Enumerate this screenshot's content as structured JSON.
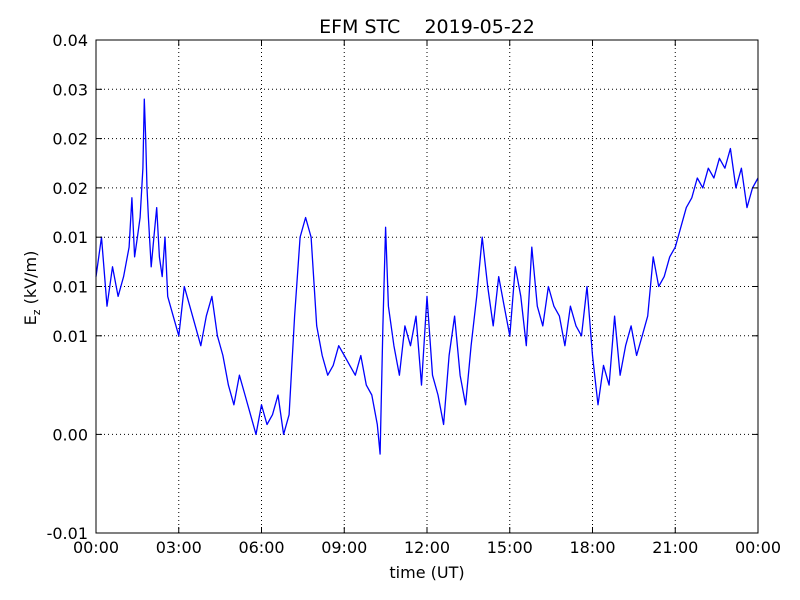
{
  "chart_data": {
    "type": "line",
    "title": "EFM STC    2019-05-22",
    "xlabel": "time (UT)",
    "ylabel": "E",
    "ylabel_sub": "z",
    "ylabel_unit": " (kV/m)",
    "xlim": [
      0,
      24
    ],
    "ylim": [
      -0.01,
      0.04
    ],
    "x_ticks": [
      0,
      3,
      6,
      9,
      12,
      15,
      18,
      21,
      24
    ],
    "x_tick_labels": [
      "00:00",
      "03:00",
      "06:00",
      "09:00",
      "12:00",
      "15:00",
      "18:00",
      "21:00",
      "00:00"
    ],
    "y_ticks": [
      -0.01,
      0.0,
      0.01,
      0.015,
      0.02,
      0.025,
      0.03,
      0.035,
      0.04
    ],
    "y_tick_labels": [
      "-0.01",
      "0.00",
      "0.01",
      "0.01",
      "0.01",
      "0.02",
      "0.02",
      "0.03",
      "0.04"
    ],
    "grid": true,
    "grid_style": "dotted",
    "series": [
      {
        "color": "#0000ff",
        "x": [
          0.0,
          0.2,
          0.4,
          0.6,
          0.8,
          1.0,
          1.2,
          1.3,
          1.4,
          1.5,
          1.6,
          1.7,
          1.75,
          1.8,
          1.85,
          1.9,
          2.0,
          2.1,
          2.2,
          2.3,
          2.4,
          2.5,
          2.6,
          2.8,
          3.0,
          3.2,
          3.4,
          3.6,
          3.8,
          4.0,
          4.2,
          4.4,
          4.6,
          4.8,
          5.0,
          5.2,
          5.4,
          5.6,
          5.8,
          6.0,
          6.2,
          6.4,
          6.6,
          6.8,
          7.0,
          7.2,
          7.4,
          7.6,
          7.8,
          8.0,
          8.2,
          8.4,
          8.6,
          8.8,
          9.0,
          9.2,
          9.4,
          9.6,
          9.8,
          10.0,
          10.2,
          10.3,
          10.4,
          10.5,
          10.6,
          10.8,
          11.0,
          11.2,
          11.4,
          11.6,
          11.8,
          12.0,
          12.2,
          12.4,
          12.6,
          12.8,
          13.0,
          13.2,
          13.4,
          13.6,
          13.8,
          14.0,
          14.2,
          14.4,
          14.6,
          14.8,
          15.0,
          15.2,
          15.4,
          15.6,
          15.8,
          16.0,
          16.2,
          16.4,
          16.6,
          16.8,
          17.0,
          17.2,
          17.4,
          17.6,
          17.8,
          18.0,
          18.2,
          18.4,
          18.6,
          18.8,
          19.0,
          19.2,
          19.4,
          19.6,
          19.8,
          20.0,
          20.2,
          20.4,
          20.6,
          20.8,
          21.0,
          21.2,
          21.4,
          21.6,
          21.8,
          22.0,
          22.2,
          22.4,
          22.6,
          22.8,
          23.0,
          23.2,
          23.4,
          23.6,
          23.8,
          24.0
        ],
        "y": [
          0.016,
          0.02,
          0.013,
          0.017,
          0.014,
          0.016,
          0.019,
          0.024,
          0.018,
          0.02,
          0.022,
          0.027,
          0.034,
          0.03,
          0.025,
          0.022,
          0.017,
          0.02,
          0.023,
          0.018,
          0.016,
          0.02,
          0.014,
          0.012,
          0.01,
          0.015,
          0.013,
          0.011,
          0.009,
          0.012,
          0.014,
          0.01,
          0.008,
          0.005,
          0.003,
          0.006,
          0.004,
          0.002,
          0.0,
          0.003,
          0.001,
          0.002,
          0.004,
          0.0,
          0.002,
          0.012,
          0.02,
          0.022,
          0.02,
          0.011,
          0.008,
          0.006,
          0.007,
          0.009,
          0.008,
          0.007,
          0.006,
          0.008,
          0.005,
          0.004,
          0.001,
          -0.002,
          0.011,
          0.021,
          0.013,
          0.009,
          0.006,
          0.011,
          0.009,
          0.012,
          0.005,
          0.014,
          0.006,
          0.004,
          0.001,
          0.008,
          0.012,
          0.006,
          0.003,
          0.009,
          0.014,
          0.02,
          0.015,
          0.011,
          0.016,
          0.013,
          0.01,
          0.017,
          0.014,
          0.009,
          0.019,
          0.013,
          0.011,
          0.015,
          0.013,
          0.012,
          0.009,
          0.013,
          0.011,
          0.01,
          0.015,
          0.008,
          0.003,
          0.007,
          0.005,
          0.012,
          0.006,
          0.009,
          0.011,
          0.008,
          0.01,
          0.012,
          0.018,
          0.015,
          0.016,
          0.018,
          0.019,
          0.021,
          0.023,
          0.024,
          0.026,
          0.025,
          0.027,
          0.026,
          0.028,
          0.027,
          0.029,
          0.025,
          0.027,
          0.023,
          0.025,
          0.026
        ]
      }
    ]
  }
}
